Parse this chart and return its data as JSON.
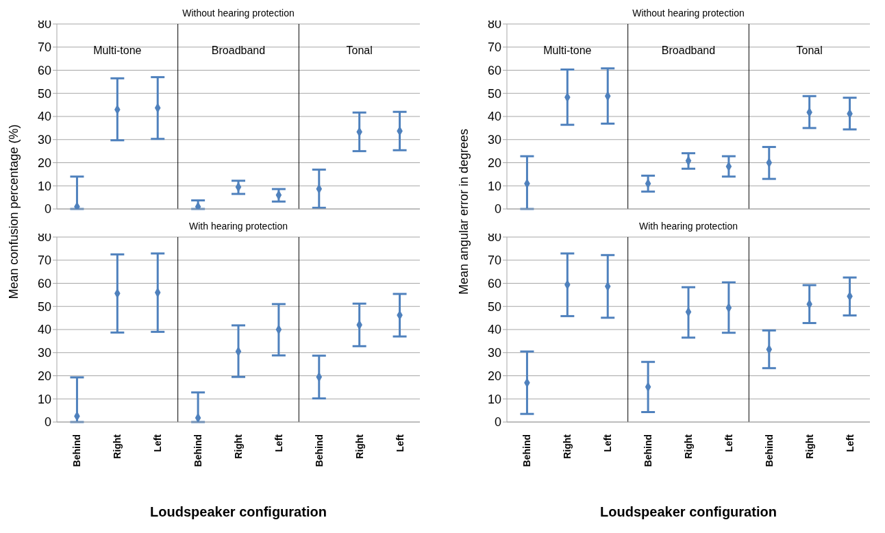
{
  "chart_data": [
    {
      "type": "scatter",
      "title": "Without hearing protection",
      "categories": [
        null,
        null,
        null,
        null,
        null,
        null,
        null,
        null,
        null
      ],
      "tick_labels": "y",
      "ylim": [
        0,
        80
      ],
      "yticks": [
        0,
        10,
        20,
        30,
        40,
        50,
        60,
        70,
        80
      ],
      "grid": "y",
      "marker": "diamond",
      "annotations": [
        "Multi-tone",
        "Broadband",
        "Tonal"
      ],
      "series": [
        {
          "color": "#4f81bd",
          "values": [
            1,
            43,
            43.7,
            1,
            9.5,
            6,
            8.7,
            33.3,
            33.7
          ],
          "errors": [
            [
              0,
              14
            ],
            [
              29.7,
              56.5
            ],
            [
              30.3,
              57
            ],
            [
              0,
              3.7
            ],
            [
              6.5,
              12.2
            ],
            [
              3.2,
              8.6
            ],
            [
              0.5,
              17
            ],
            [
              25,
              41.7
            ],
            [
              25.4,
              42
            ]
          ]
        }
      ]
    },
    {
      "type": "scatter",
      "title": "Without hearing protection",
      "categories": [
        null,
        null,
        null,
        null,
        null,
        null,
        null,
        null,
        null
      ],
      "tick_labels": "y",
      "ylim": [
        0,
        80
      ],
      "yticks": [
        0,
        10,
        20,
        30,
        40,
        50,
        60,
        70,
        80
      ],
      "grid": "y",
      "marker": "diamond",
      "annotations": [
        "Multi-tone",
        "Broadband",
        "Tonal"
      ],
      "series": [
        {
          "color": "#4f81bd",
          "values": [
            11,
            48.3,
            48.8,
            11,
            20.8,
            18.4,
            20,
            41.8,
            41.2
          ],
          "errors": [
            [
              0,
              22.8
            ],
            [
              36.4,
              60.3
            ],
            [
              36.9,
              60.8
            ],
            [
              7.5,
              14.4
            ],
            [
              17.4,
              24.1
            ],
            [
              14,
              22.8
            ],
            [
              13,
              26.8
            ],
            [
              35,
              48.8
            ],
            [
              34.4,
              48.1
            ]
          ]
        }
      ]
    },
    {
      "type": "scatter",
      "title": "With hearing protection",
      "categories": [
        "Behind",
        "Right",
        "Left",
        "Behind",
        "Right",
        "Left",
        "Behind",
        "Right",
        "Left"
      ],
      "xlabel": "Loudspeaker configuration",
      "ylabel": "Mean confusion percentage (%)",
      "ylim": [
        0,
        80
      ],
      "yticks": [
        0,
        10,
        20,
        30,
        40,
        50,
        60,
        70,
        80
      ],
      "grid": "y",
      "marker": "diamond",
      "series": [
        {
          "color": "#4f81bd",
          "values": [
            2.5,
            55.6,
            56,
            1.8,
            30.5,
            40,
            19.5,
            42,
            46.2
          ],
          "errors": [
            [
              0,
              19.3
            ],
            [
              38.7,
              72.5
            ],
            [
              39,
              72.9
            ],
            [
              0,
              12.8
            ],
            [
              19.5,
              41.8
            ],
            [
              28.8,
              51
            ],
            [
              10.2,
              28.7
            ],
            [
              32.8,
              51.2
            ],
            [
              37,
              55.4
            ]
          ]
        }
      ]
    },
    {
      "type": "scatter",
      "title": "With hearing protection",
      "categories": [
        "Behind",
        "Right",
        "Left",
        "Behind",
        "Right",
        "Left",
        "Behind",
        "Right",
        "Left"
      ],
      "xlabel": "Loudspeaker configuration",
      "ylabel": "Mean angular error in degrees",
      "ylim": [
        0,
        80
      ],
      "yticks": [
        0,
        10,
        20,
        30,
        40,
        50,
        60,
        70,
        80
      ],
      "grid": "y",
      "marker": "diamond",
      "series": [
        {
          "color": "#4f81bd",
          "values": [
            17,
            59.4,
            58.7,
            15.2,
            47.6,
            49.4,
            31.4,
            51,
            54.4
          ],
          "errors": [
            [
              3.5,
              30.5
            ],
            [
              45.8,
              72.9
            ],
            [
              45.1,
              72.2
            ],
            [
              4.3,
              26
            ],
            [
              36.5,
              58.3
            ],
            [
              38.6,
              60.4
            ],
            [
              23.3,
              39.6
            ],
            [
              42.8,
              59.2
            ],
            [
              46.1,
              62.5
            ]
          ]
        }
      ]
    }
  ]
}
